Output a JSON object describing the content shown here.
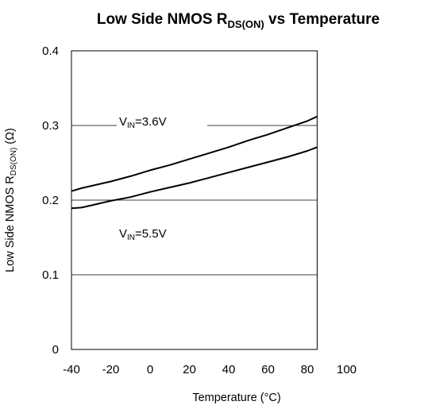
{
  "chart_data": {
    "type": "line",
    "title": {
      "prefix": "Low Side NMOS   R",
      "subscript": "DS(ON)",
      "suffix": " vs Temperature"
    },
    "xlabel": "Temperature (°C)",
    "ylabel": {
      "prefix": "Low Side NMOS R",
      "subscript": "DS(ON)",
      "suffix": " (Ω)"
    },
    "xlim": [
      -40,
      100
    ],
    "ylim": [
      0,
      0.4
    ],
    "xticks": [
      -40,
      -20,
      0,
      20,
      40,
      60,
      80,
      100
    ],
    "xtick_labels": [
      "-40",
      "-20",
      "0",
      "20",
      "40",
      "60",
      "80",
      "100"
    ],
    "yticks": [
      0,
      0.1,
      0.2,
      0.3,
      0.4
    ],
    "ytick_labels": [
      "0",
      "0.1",
      "0.2",
      "0.3",
      "0.4"
    ],
    "grid": true,
    "series": [
      {
        "label": {
          "prefix": "V",
          "subscript": "IN",
          "suffix": "=3.6V"
        },
        "x": [
          -40,
          -35,
          -30,
          -20,
          -10,
          0,
          10,
          20,
          30,
          40,
          50,
          60,
          70,
          80,
          85
        ],
        "y": [
          0.212,
          0.216,
          0.219,
          0.225,
          0.232,
          0.24,
          0.247,
          0.255,
          0.263,
          0.271,
          0.28,
          0.288,
          0.297,
          0.306,
          0.312
        ]
      },
      {
        "label": {
          "prefix": "V",
          "subscript": "IN",
          "suffix": "=5.5V"
        },
        "x": [
          -40,
          -35,
          -30,
          -20,
          -10,
          0,
          10,
          20,
          30,
          40,
          50,
          60,
          70,
          80,
          85
        ],
        "y": [
          0.189,
          0.19,
          0.193,
          0.199,
          0.204,
          0.211,
          0.217,
          0.223,
          0.23,
          0.237,
          0.244,
          0.251,
          0.258,
          0.266,
          0.271
        ]
      }
    ]
  }
}
